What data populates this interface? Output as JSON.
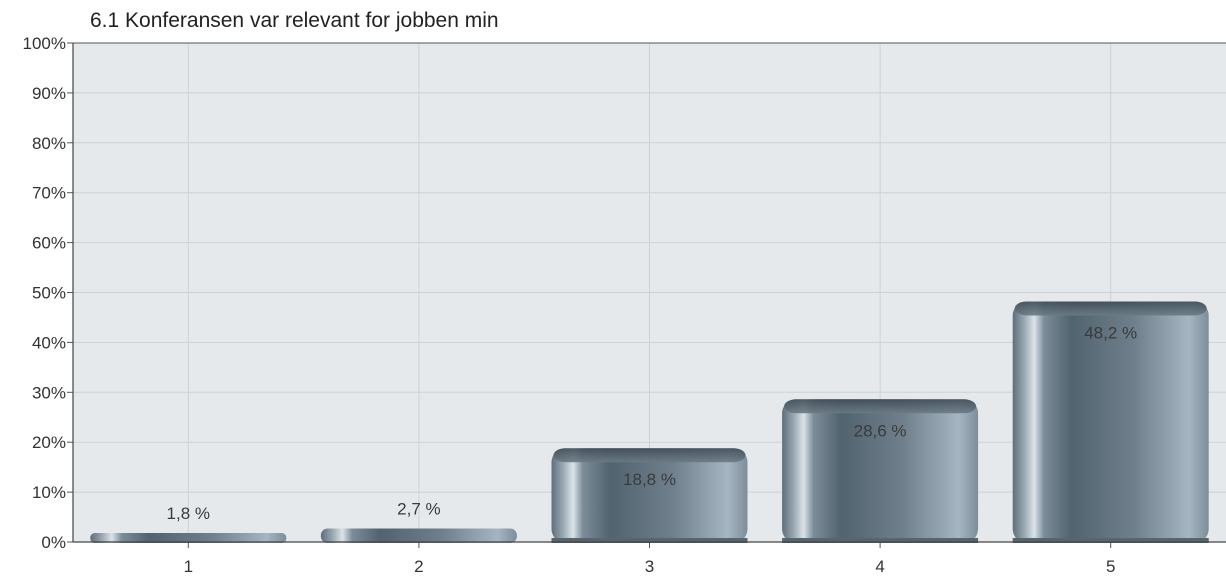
{
  "chart_data": {
    "type": "bar",
    "title": "6.1 Konferansen var relevant for jobben min",
    "categories": [
      "1",
      "2",
      "3",
      "4",
      "5"
    ],
    "values": [
      1.8,
      2.7,
      18.8,
      28.6,
      48.2
    ],
    "value_labels": [
      "1,8 %",
      "2,7 %",
      "18,8 %",
      "28,6 %",
      "48,2 %"
    ],
    "y_ticks": [
      "0%",
      "10%",
      "20%",
      "30%",
      "40%",
      "50%",
      "60%",
      "70%",
      "80%",
      "90%",
      "100%"
    ],
    "ylim": [
      0,
      100
    ],
    "grid": true,
    "legend": "none",
    "xlabel": "",
    "ylabel": "",
    "colors": {
      "plot_background": "#e6e9ec",
      "gridline": "#cdd1d5",
      "bar_dark": "#4f5f6b",
      "bar_light": "#9fb0bc",
      "bar_top": "#5b6a75"
    }
  }
}
